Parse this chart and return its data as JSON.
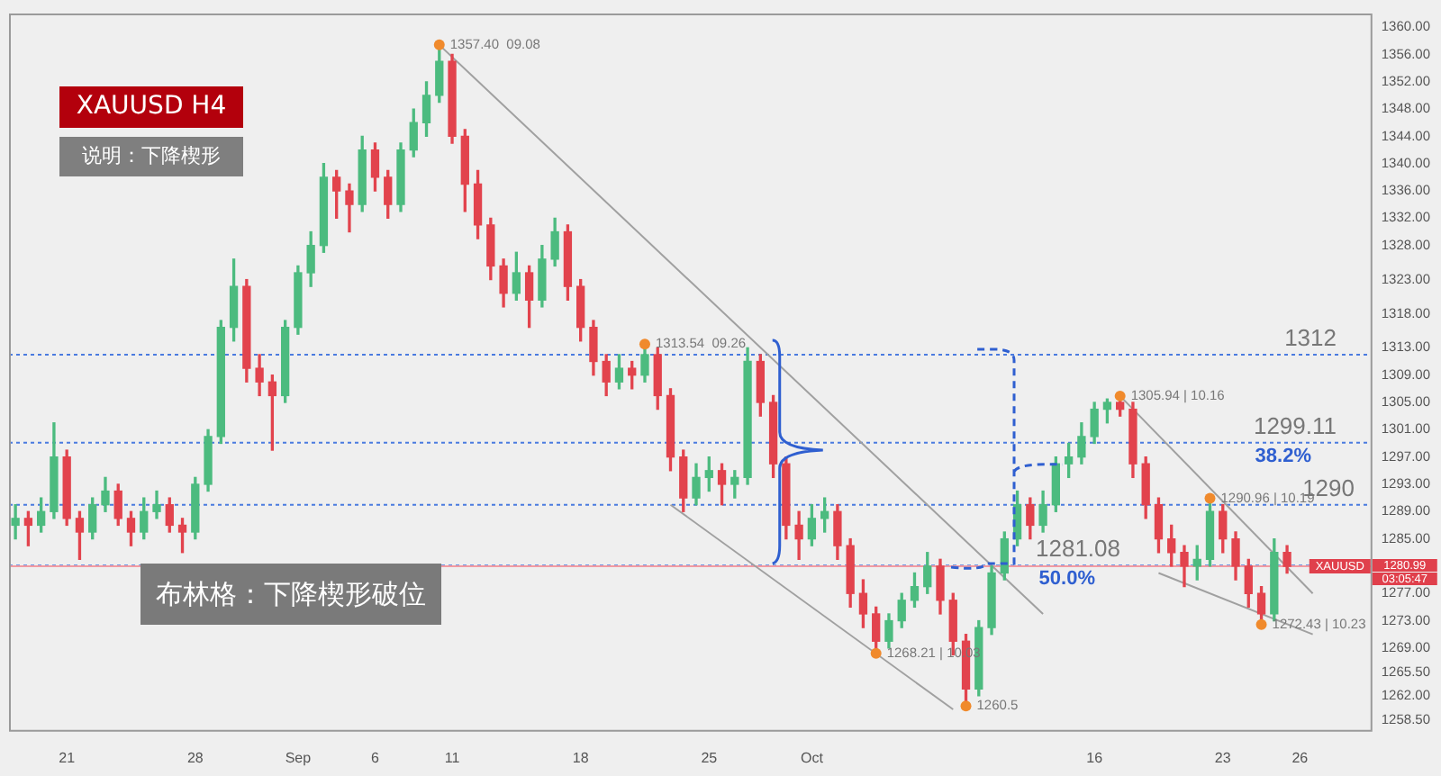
{
  "chart_data": {
    "type": "candlestick",
    "title": "XAUUSD  H4",
    "subtitle": "说明：下降楔形",
    "categories": [
      null,
      null,
      null,
      null,
      "21",
      null,
      null,
      null,
      null,
      null,
      null,
      null,
      null,
      null,
      "28",
      null,
      null,
      null,
      null,
      null,
      null,
      null,
      "Sep",
      null,
      null,
      null,
      null,
      null,
      "6",
      null,
      null,
      null,
      null,
      null,
      "11",
      null,
      null,
      null,
      null,
      null,
      null,
      null,
      null,
      null,
      "18",
      null,
      null,
      null,
      null,
      null,
      null,
      null,
      null,
      null,
      "25",
      null,
      null,
      null,
      null,
      null,
      null,
      null,
      "Oct",
      null,
      null,
      null,
      null,
      null,
      null,
      null,
      null,
      null,
      null,
      null,
      null,
      null,
      null,
      null,
      null,
      null,
      null,
      null,
      null,
      null,
      "16",
      null,
      null,
      null,
      null,
      null,
      null,
      null,
      null,
      null,
      "23",
      null,
      null,
      null,
      null,
      null,
      "26",
      null,
      null,
      null,
      null,
      null
    ],
    "ohlc": [
      [
        1287,
        1290,
        1285,
        1288
      ],
      [
        1288,
        1289,
        1284,
        1287
      ],
      [
        1287,
        1291,
        1286,
        1289
      ],
      [
        1289,
        1302,
        1288,
        1297
      ],
      [
        1297,
        1298,
        1287,
        1288
      ],
      [
        1288,
        1289,
        1282,
        1286
      ],
      [
        1286,
        1291,
        1285,
        1290
      ],
      [
        1290,
        1294,
        1289,
        1292
      ],
      [
        1292,
        1293,
        1287,
        1288
      ],
      [
        1288,
        1289,
        1284,
        1286
      ],
      [
        1286,
        1291,
        1285,
        1289
      ],
      [
        1289,
        1292,
        1288,
        1290
      ],
      [
        1290,
        1291,
        1286,
        1287
      ],
      [
        1287,
        1288,
        1283,
        1286
      ],
      [
        1286,
        1294,
        1285,
        1293
      ],
      [
        1293,
        1301,
        1292,
        1300
      ],
      [
        1300,
        1317,
        1299,
        1316
      ],
      [
        1316,
        1326,
        1314,
        1322
      ],
      [
        1322,
        1323,
        1308,
        1310
      ],
      [
        1310,
        1312,
        1306,
        1308
      ],
      [
        1308,
        1309,
        1298,
        1306
      ],
      [
        1306,
        1317,
        1305,
        1316
      ],
      [
        1316,
        1325,
        1315,
        1324
      ],
      [
        1324,
        1330,
        1322,
        1328
      ],
      [
        1328,
        1340,
        1327,
        1338
      ],
      [
        1338,
        1339,
        1332,
        1336
      ],
      [
        1336,
        1337,
        1330,
        1334
      ],
      [
        1334,
        1344,
        1333,
        1342
      ],
      [
        1342,
        1343,
        1336,
        1338
      ],
      [
        1338,
        1339,
        1332,
        1334
      ],
      [
        1334,
        1343,
        1333,
        1342
      ],
      [
        1342,
        1348,
        1341,
        1346
      ],
      [
        1346,
        1352,
        1344,
        1350
      ],
      [
        1350,
        1357.4,
        1349,
        1355
      ],
      [
        1355,
        1356,
        1343,
        1344
      ],
      [
        1344,
        1345,
        1333,
        1337
      ],
      [
        1337,
        1339,
        1329,
        1331
      ],
      [
        1331,
        1332,
        1323,
        1325
      ],
      [
        1325,
        1326,
        1319,
        1321
      ],
      [
        1321,
        1327,
        1320,
        1324
      ],
      [
        1324,
        1325,
        1316,
        1320
      ],
      [
        1320,
        1328,
        1319,
        1326
      ],
      [
        1326,
        1332,
        1325,
        1330
      ],
      [
        1330,
        1331,
        1320,
        1322
      ],
      [
        1322,
        1323,
        1314,
        1316
      ],
      [
        1316,
        1317,
        1309,
        1311
      ],
      [
        1311,
        1312,
        1306,
        1308
      ],
      [
        1308,
        1312,
        1307,
        1310
      ],
      [
        1310,
        1311,
        1307,
        1309
      ],
      [
        1309,
        1313.54,
        1308,
        1312
      ],
      [
        1312,
        1313,
        1304,
        1306
      ],
      [
        1306,
        1307,
        1295,
        1297
      ],
      [
        1297,
        1298,
        1289,
        1291
      ],
      [
        1291,
        1296,
        1290,
        1294
      ],
      [
        1294,
        1297,
        1292,
        1295
      ],
      [
        1295,
        1296,
        1290,
        1293
      ],
      [
        1293,
        1295,
        1291,
        1294
      ],
      [
        1294,
        1313,
        1293,
        1311
      ],
      [
        1311,
        1312,
        1303,
        1305
      ],
      [
        1305,
        1306,
        1294,
        1296
      ],
      [
        1296,
        1297,
        1285,
        1287
      ],
      [
        1287,
        1289,
        1282,
        1285
      ],
      [
        1285,
        1290,
        1284,
        1288
      ],
      [
        1288,
        1291,
        1286,
        1289
      ],
      [
        1289,
        1290,
        1282,
        1284
      ],
      [
        1284,
        1285,
        1275,
        1277
      ],
      [
        1277,
        1279,
        1272,
        1274
      ],
      [
        1274,
        1275,
        1268.21,
        1270
      ],
      [
        1270,
        1274,
        1269,
        1273
      ],
      [
        1273,
        1277,
        1272,
        1276
      ],
      [
        1276,
        1280,
        1275,
        1278
      ],
      [
        1278,
        1283,
        1277,
        1281
      ],
      [
        1281,
        1282,
        1274,
        1276
      ],
      [
        1276,
        1277,
        1268,
        1270
      ],
      [
        1270,
        1271,
        1260.5,
        1263
      ],
      [
        1263,
        1273,
        1262,
        1272
      ],
      [
        1272,
        1281,
        1271,
        1280
      ],
      [
        1280,
        1286,
        1279,
        1285
      ],
      [
        1285,
        1292,
        1284,
        1290
      ],
      [
        1290,
        1291,
        1285,
        1287
      ],
      [
        1287,
        1292,
        1286,
        1290
      ],
      [
        1290,
        1297,
        1289,
        1296
      ],
      [
        1296,
        1299,
        1294,
        1297
      ],
      [
        1297,
        1302,
        1296,
        1300
      ],
      [
        1300,
        1305,
        1299,
        1304
      ],
      [
        1304,
        1305.5,
        1302,
        1305
      ],
      [
        1305,
        1305.94,
        1303,
        1304
      ],
      [
        1304,
        1305,
        1294,
        1296
      ],
      [
        1296,
        1297,
        1288,
        1290
      ],
      [
        1290,
        1291,
        1283,
        1285
      ],
      [
        1285,
        1287,
        1281,
        1283
      ],
      [
        1283,
        1284,
        1278,
        1281
      ],
      [
        1281,
        1284,
        1279,
        1282
      ],
      [
        1282,
        1290.96,
        1281,
        1289
      ],
      [
        1289,
        1290,
        1283,
        1285
      ],
      [
        1285,
        1286,
        1279,
        1281
      ],
      [
        1281,
        1282,
        1275,
        1277
      ],
      [
        1277,
        1278,
        1272.43,
        1274
      ],
      [
        1274,
        1285,
        1273,
        1283
      ],
      [
        1283,
        1284,
        1280,
        1280.99
      ],
      null,
      null,
      null,
      null,
      null,
      null
    ],
    "series": [
      {
        "type": "scatter",
        "color": "#f08a2c",
        "marker": "circle",
        "values": [
          null,
          null,
          null,
          null,
          null,
          null,
          null,
          null,
          null,
          null,
          null,
          null,
          null,
          null,
          null,
          null,
          null,
          null,
          null,
          null,
          null,
          null,
          null,
          null,
          null,
          null,
          null,
          null,
          null,
          null,
          null,
          null,
          null,
          1357.4,
          null,
          null,
          null,
          null,
          null,
          null,
          null,
          null,
          null,
          null,
          null,
          null,
          null,
          null,
          null,
          1313.54,
          null,
          null,
          null,
          null,
          null,
          null,
          null,
          null,
          null,
          null,
          null,
          null,
          null,
          null,
          null,
          null,
          null,
          1268.21,
          null,
          null,
          null,
          null,
          null,
          null,
          1260.5,
          null,
          null,
          null,
          null,
          null,
          null,
          null,
          null,
          null,
          null,
          null,
          1305.94,
          null,
          null,
          null,
          null,
          null,
          null,
          1290.96,
          null,
          null,
          null,
          1272.43,
          null,
          null,
          null,
          null,
          null,
          null,
          null,
          null
        ]
      },
      {
        "type": "line",
        "color": "#a0a0a0",
        "values": [
          null,
          null,
          null,
          null,
          null,
          null,
          null,
          null,
          null,
          null,
          null,
          null,
          null,
          null,
          null,
          null,
          null,
          null,
          null,
          null,
          null,
          null,
          null,
          null,
          null,
          null,
          null,
          null,
          null,
          null,
          null,
          null,
          null,
          1357.4,
          null,
          null,
          null,
          null,
          null,
          null,
          null,
          null,
          null,
          null,
          null,
          null,
          null,
          null,
          null,
          null,
          null,
          null,
          null,
          null,
          null,
          null,
          null,
          null,
          null,
          null,
          null,
          null,
          null,
          null,
          null,
          null,
          null,
          null,
          null,
          null,
          null,
          null,
          null,
          null,
          null,
          null,
          null,
          null,
          null,
          null,
          1274,
          null,
          null,
          null,
          null,
          null,
          null,
          null,
          null,
          null,
          null,
          null,
          null,
          null,
          null,
          null,
          null,
          null,
          null,
          null,
          null,
          null,
          null,
          null,
          null,
          null
        ]
      },
      {
        "type": "line",
        "color": "#a0a0a0",
        "values": [
          null,
          null,
          null,
          null,
          null,
          null,
          null,
          null,
          null,
          null,
          null,
          null,
          null,
          null,
          null,
          null,
          null,
          null,
          null,
          null,
          null,
          null,
          null,
          null,
          null,
          null,
          null,
          null,
          null,
          null,
          null,
          null,
          null,
          null,
          null,
          null,
          null,
          null,
          null,
          null,
          null,
          null,
          null,
          null,
          null,
          null,
          null,
          null,
          null,
          null,
          null,
          1290,
          null,
          null,
          null,
          null,
          null,
          null,
          null,
          null,
          null,
          null,
          null,
          null,
          null,
          null,
          null,
          null,
          null,
          null,
          null,
          null,
          null,
          1260,
          null,
          null,
          null,
          null,
          null,
          null,
          null,
          null,
          null,
          null,
          null,
          null,
          null,
          null,
          null,
          null,
          null,
          null,
          null,
          null,
          null,
          null,
          null,
          null,
          null,
          null,
          null,
          null,
          null,
          null,
          null,
          null
        ]
      },
      {
        "type": "line",
        "color": "#a0a0a0",
        "values": [
          null,
          null,
          null,
          null,
          null,
          null,
          null,
          null,
          null,
          null,
          null,
          null,
          null,
          null,
          null,
          null,
          null,
          null,
          null,
          null,
          null,
          null,
          null,
          null,
          null,
          null,
          null,
          null,
          null,
          null,
          null,
          null,
          null,
          null,
          null,
          null,
          null,
          null,
          null,
          null,
          null,
          null,
          null,
          null,
          null,
          null,
          null,
          null,
          null,
          null,
          null,
          null,
          null,
          null,
          null,
          null,
          null,
          null,
          null,
          null,
          null,
          null,
          null,
          null,
          null,
          null,
          null,
          null,
          null,
          null,
          null,
          null,
          null,
          null,
          null,
          null,
          null,
          null,
          null,
          null,
          null,
          null,
          null,
          null,
          null,
          null,
          1305.94,
          null,
          null,
          null,
          null,
          null,
          null,
          null,
          null,
          null,
          null,
          null,
          null,
          null,
          null,
          1277,
          null,
          null,
          null,
          null
        ]
      },
      {
        "type": "line",
        "color": "#a0a0a0",
        "values": [
          null,
          null,
          null,
          null,
          null,
          null,
          null,
          null,
          null,
          null,
          null,
          null,
          null,
          null,
          null,
          null,
          null,
          null,
          null,
          null,
          null,
          null,
          null,
          null,
          null,
          null,
          null,
          null,
          null,
          null,
          null,
          null,
          null,
          null,
          null,
          null,
          null,
          null,
          null,
          null,
          null,
          null,
          null,
          null,
          null,
          null,
          null,
          null,
          null,
          null,
          null,
          null,
          null,
          null,
          null,
          null,
          null,
          null,
          null,
          null,
          null,
          null,
          null,
          null,
          null,
          null,
          null,
          null,
          null,
          null,
          null,
          null,
          null,
          null,
          null,
          null,
          null,
          null,
          null,
          null,
          null,
          null,
          null,
          null,
          null,
          null,
          null,
          null,
          null,
          1280,
          null,
          null,
          null,
          null,
          null,
          null,
          null,
          null,
          null,
          null,
          null,
          1271,
          null,
          null,
          null,
          null
        ]
      }
    ],
    "ylim": [
      1257,
      1362
    ],
    "yticks": [
      {
        "value": 1360,
        "label": "1360.00"
      },
      {
        "value": 1356,
        "label": "1356.00"
      },
      {
        "value": 1352,
        "label": "1352.00"
      },
      {
        "value": 1348,
        "label": "1348.00"
      },
      {
        "value": 1344,
        "label": "1344.00"
      },
      {
        "value": 1340,
        "label": "1340.00"
      },
      {
        "value": 1336,
        "label": "1336.00"
      },
      {
        "value": 1332,
        "label": "1332.00"
      },
      {
        "value": 1328,
        "label": "1328.00"
      },
      {
        "value": 1323,
        "label": "1323.00"
      },
      {
        "value": 1318,
        "label": "1318.00"
      },
      {
        "value": 1313,
        "label": "1313.00"
      },
      {
        "value": 1309,
        "label": "1309.00"
      },
      {
        "value": 1305,
        "label": "1305.00"
      },
      {
        "value": 1301,
        "label": "1301.00"
      },
      {
        "value": 1297,
        "label": "1297.00"
      },
      {
        "value": 1293,
        "label": "1293.00"
      },
      {
        "value": 1289,
        "label": "1289.00"
      },
      {
        "value": 1285,
        "label": "1285.00"
      },
      {
        "value": 1277,
        "label": "1277.00"
      },
      {
        "value": 1273,
        "label": "1273.00"
      },
      {
        "value": 1269,
        "label": "1269.00"
      },
      {
        "value": 1265.5,
        "label": "1265.50"
      },
      {
        "value": 1262,
        "label": "1262.00"
      },
      {
        "value": 1258.5,
        "label": "1258.50"
      }
    ],
    "ref_lines": [
      {
        "axis": "y",
        "value": 1312,
        "label": "1312",
        "color": "#4a7be0",
        "line_style": "dotted"
      },
      {
        "axis": "y",
        "value": 1299.11,
        "label": "1299.11\n38.2%",
        "color": "#4a7be0",
        "line_style": "dotted"
      },
      {
        "axis": "y",
        "value": 1290,
        "label": "1290",
        "color": "#4a7be0",
        "line_style": "dotted"
      },
      {
        "axis": "y",
        "value": 1281.08,
        "label": "1281.08\n50.0%",
        "color": "#4a7be0",
        "line_style": "dotted"
      },
      {
        "axis": "y",
        "value": 1280.99,
        "label": "XAUUSD",
        "color": "#f29aa2",
        "line_style": "solid"
      }
    ],
    "annotations": [
      "布林格：下降楔形破位",
      "03:05:47",
      "1280.99",
      "1357.40  09.08",
      "1313.54  09.26",
      "1268.21 | 10.03",
      "1260.5",
      "1305.94 | 10.16",
      "1290.96 | 10.19",
      "1272.43 | 10.23"
    ]
  }
}
